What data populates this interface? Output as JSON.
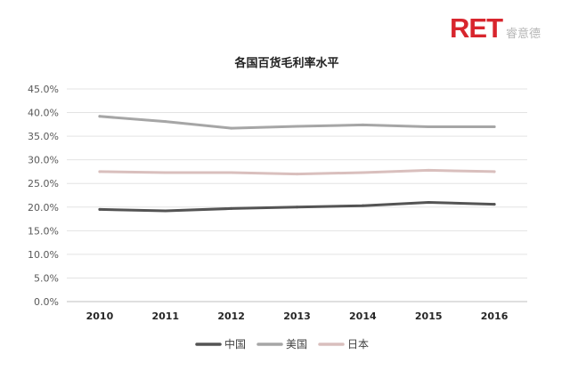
{
  "brand": {
    "mark": "RET",
    "name_cn": "睿意德"
  },
  "chart_data": {
    "type": "line",
    "title": "各国百货毛利率水平",
    "xlabel": "",
    "ylabel": "",
    "x": [
      "2010",
      "2011",
      "2012",
      "2013",
      "2014",
      "2015",
      "2016"
    ],
    "ylim": [
      0,
      0.45
    ],
    "yticks": [
      "0.0%",
      "5.0%",
      "10.0%",
      "15.0%",
      "20.0%",
      "25.0%",
      "30.0%",
      "35.0%",
      "40.0%",
      "45.0%"
    ],
    "grid": true,
    "legend_position": "bottom",
    "series": [
      {
        "name": "中国",
        "color": "#545454",
        "values": [
          0.195,
          0.192,
          0.197,
          0.2,
          0.203,
          0.21,
          0.206
        ]
      },
      {
        "name": "美国",
        "color": "#a6a6a6",
        "values": [
          0.392,
          0.381,
          0.367,
          0.371,
          0.374,
          0.37,
          0.37
        ]
      },
      {
        "name": "日本",
        "color": "#d9bfbd",
        "values": [
          0.275,
          0.273,
          0.273,
          0.27,
          0.273,
          0.278,
          0.275
        ]
      }
    ]
  }
}
